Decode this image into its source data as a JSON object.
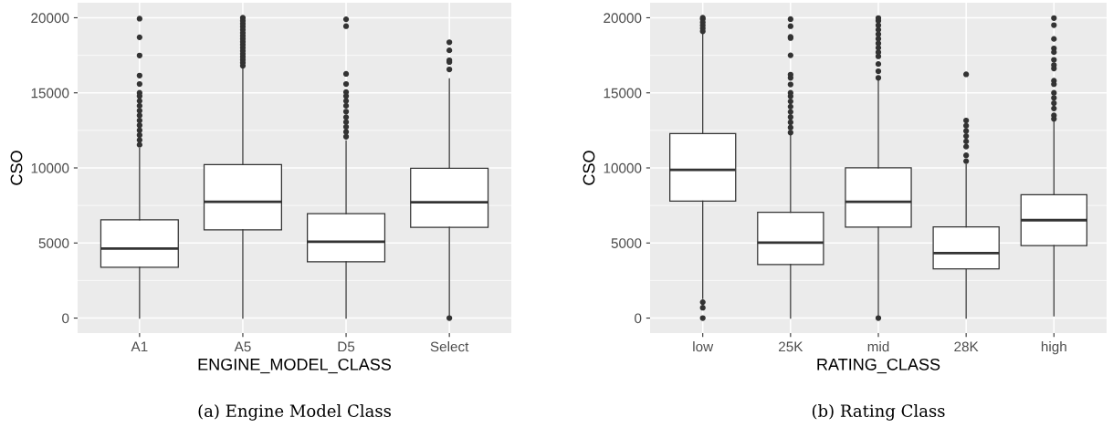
{
  "chart_data": [
    {
      "type": "box",
      "title": "(a) Engine Model Class",
      "xlabel": "ENGINE_MODEL_CLASS",
      "ylabel": "CSO",
      "categories": [
        "A1",
        "A5",
        "D5",
        "Select"
      ],
      "ylim": [
        -1000,
        21000
      ],
      "yticks": [
        0,
        5000,
        10000,
        15000,
        20000
      ],
      "grid": true,
      "boxes": [
        {
          "low": 0,
          "q1": 3380,
          "median": 4630,
          "q3": 6540,
          "high": 11300,
          "outliers": [
            19940,
            18700,
            17490,
            16150,
            15590,
            15000,
            14790,
            14460,
            14140,
            13810,
            13490,
            13160,
            12840,
            12510,
            12190,
            11860,
            11540
          ]
        },
        {
          "low": 0,
          "q1": 5870,
          "median": 7750,
          "q3": 10220,
          "high": 16650,
          "outliers": [
            16800,
            17000,
            17200,
            17400,
            17600,
            17800,
            18000,
            18200,
            18400,
            18600,
            18800,
            19000,
            19200,
            19400,
            19600,
            19800,
            20000
          ]
        },
        {
          "low": 0,
          "q1": 3750,
          "median": 5090,
          "q3": 6950,
          "high": 11800,
          "outliers": [
            19900,
            19440,
            16260,
            15590,
            15050,
            14790,
            14460,
            14140,
            13750,
            13380,
            13050,
            12730,
            12400,
            12080
          ]
        },
        {
          "low": 100,
          "q1": 6040,
          "median": 7710,
          "q3": 9980,
          "high": 15930,
          "outliers": [
            0,
            16560,
            17050,
            17170,
            17830,
            18370
          ]
        }
      ]
    },
    {
      "type": "box",
      "title": "(b) Rating Class",
      "xlabel": "RATING_CLASS",
      "ylabel": "CSO",
      "categories": [
        "low",
        "25K",
        "mid",
        "28K",
        "high"
      ],
      "ylim": [
        -1000,
        21000
      ],
      "yticks": [
        0,
        5000,
        10000,
        15000,
        20000
      ],
      "grid": true,
      "boxes": [
        {
          "low": 1300,
          "q1": 7790,
          "median": 9870,
          "q3": 12280,
          "high": 18940,
          "outliers": [
            0,
            690,
            1060,
            19100,
            19300,
            19500,
            19700,
            19900,
            20000
          ]
        },
        {
          "low": 0,
          "q1": 3560,
          "median": 5020,
          "q3": 7050,
          "high": 12230,
          "outliers": [
            19910,
            19440,
            18730,
            18650,
            17500,
            16210,
            16000,
            15560,
            15000,
            14770,
            14430,
            14080,
            13730,
            13390,
            13040,
            12690,
            12350
          ]
        },
        {
          "low": 100,
          "q1": 6060,
          "median": 7750,
          "q3": 10010,
          "high": 15860,
          "outliers": [
            0,
            16000,
            16440,
            16920,
            17430,
            17700,
            18000,
            18300,
            18600,
            18900,
            19200,
            19500,
            19800,
            19980
          ]
        },
        {
          "low": 0,
          "q1": 3280,
          "median": 4320,
          "q3": 6080,
          "high": 10220,
          "outliers": [
            16230,
            13160,
            12810,
            12460,
            12120,
            11770,
            11420,
            10840,
            10450
          ]
        },
        {
          "low": 140,
          "q1": 4830,
          "median": 6520,
          "q3": 8210,
          "high": 13110,
          "outliers": [
            19980,
            19510,
            18590,
            17960,
            17710,
            17200,
            16850,
            16620,
            15810,
            15580,
            15000,
            14660,
            14310,
            13960,
            13500,
            13270
          ]
        }
      ]
    }
  ]
}
